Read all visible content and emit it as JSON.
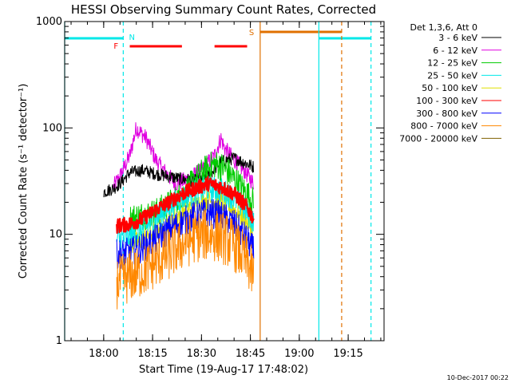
{
  "chart_data": {
    "type": "line",
    "title": "HESSI Observing Summary Count Rates, Corrected",
    "xlabel": "Start Time (19-Aug-17 17:48:02)",
    "ylabel": "Corrected Count Rate (s⁻¹ detector⁻¹)",
    "yscale": "log",
    "ylim": [
      1,
      1000
    ],
    "xlim": [
      "17:48:02",
      "19:26:00"
    ],
    "x_ticks": [
      "18:00",
      "18:15",
      "18:30",
      "18:45",
      "19:00",
      "19:15"
    ],
    "y_ticks": [
      "1",
      "10",
      "100",
      "1000"
    ],
    "legend_title": "Det 1,3,6, Att 0",
    "legend_position": "right",
    "series": [
      {
        "name": "3 - 6 keV",
        "color": "#000000",
        "x": [
          "18:00",
          "18:03",
          "18:05",
          "18:08",
          "18:12",
          "18:16",
          "18:20",
          "18:24",
          "18:28",
          "18:32",
          "18:36",
          "18:40",
          "18:44",
          "18:46"
        ],
        "values": [
          25,
          27,
          30,
          38,
          40,
          37,
          35,
          33,
          32,
          35,
          48,
          52,
          46,
          43
        ]
      },
      {
        "name": "6 - 12 keV",
        "color": "#e000e0",
        "x": [
          "18:03",
          "18:05",
          "18:08",
          "18:10",
          "18:13",
          "18:16",
          "18:19",
          "18:22",
          "18:26",
          "18:30",
          "18:34",
          "18:36",
          "18:37",
          "18:40",
          "18:43",
          "18:46"
        ],
        "values": [
          28,
          35,
          55,
          100,
          80,
          50,
          38,
          30,
          33,
          40,
          55,
          80,
          65,
          50,
          40,
          30
        ]
      },
      {
        "name": "12 - 25 keV",
        "color": "#00cc00",
        "x": [
          "18:08",
          "18:12",
          "18:16",
          "18:20",
          "18:24",
          "18:28",
          "18:31",
          "18:34",
          "18:37",
          "18:40",
          "18:44",
          "18:46"
        ],
        "values": [
          14,
          15,
          16,
          19,
          23,
          32,
          40,
          46,
          42,
          33,
          24,
          20
        ]
      },
      {
        "name": "25 - 50 keV",
        "color": "#00e8e8",
        "x": [
          "18:04",
          "18:08",
          "18:12",
          "18:16",
          "18:20",
          "18:24",
          "18:28",
          "18:32",
          "18:36",
          "18:40",
          "18:44",
          "18:46"
        ],
        "values": [
          9,
          9.5,
          11,
          14,
          18,
          22,
          25,
          27,
          26,
          22,
          16,
          13
        ]
      },
      {
        "name": "50 - 100 keV",
        "color": "#e0e000",
        "x": [
          "18:08",
          "18:12",
          "18:16",
          "18:20",
          "18:24",
          "18:28",
          "18:32",
          "18:36",
          "18:40",
          "18:44",
          "18:46"
        ],
        "values": [
          8,
          9,
          11,
          13,
          16,
          19,
          21,
          20,
          17,
          13,
          11
        ]
      },
      {
        "name": "100 - 300 keV",
        "color": "#ff0000",
        "x": [
          "18:04",
          "18:08",
          "18:12",
          "18:16",
          "18:20",
          "18:24",
          "18:28",
          "18:32",
          "18:36",
          "18:40",
          "18:44",
          "18:46"
        ],
        "values": [
          12,
          12.5,
          14,
          17,
          20,
          24,
          27,
          30,
          28,
          24,
          18,
          14
        ]
      },
      {
        "name": "300 - 800 keV",
        "color": "#0000ff",
        "x": [
          "18:04",
          "18:08",
          "18:12",
          "18:16",
          "18:20",
          "18:24",
          "18:28",
          "18:32",
          "18:36",
          "18:40",
          "18:44",
          "18:46"
        ],
        "values": [
          6.5,
          6.8,
          7.5,
          9,
          11,
          13,
          15,
          16,
          15,
          12.5,
          9,
          7
        ]
      },
      {
        "name": "800 - 7000 keV",
        "color": "#ff8800",
        "x": [
          "18:04",
          "18:08",
          "18:12",
          "18:16",
          "18:20",
          "18:24",
          "18:28",
          "18:32",
          "18:36",
          "18:40",
          "18:44",
          "18:46"
        ],
        "values": [
          3.5,
          4,
          4.5,
          5.5,
          6.5,
          8,
          9.5,
          10,
          9.5,
          8,
          5.5,
          4
        ]
      },
      {
        "name": "7000 - 20000 keV",
        "color": "#806000",
        "x": [],
        "values": []
      }
    ],
    "flags": [
      {
        "label": "N",
        "color": "#00e8e8",
        "spans": [
          [
            "17:48:02",
            "18:06"
          ],
          [
            "19:06",
            "19:22"
          ]
        ]
      },
      {
        "label": "F",
        "color": "#ff0000",
        "spans": [
          [
            "18:08",
            "18:24"
          ],
          [
            "18:34",
            "18:44"
          ]
        ]
      },
      {
        "label": "S",
        "color": "#e07000",
        "spans": [
          [
            "18:48",
            "19:13"
          ]
        ]
      }
    ],
    "vertical_lines": [
      {
        "x": "17:48:02",
        "color": "#00e8e8",
        "style": "solid"
      },
      {
        "x": "18:06",
        "color": "#00e8e8",
        "style": "dashed"
      },
      {
        "x": "18:48",
        "color": "#e07000",
        "style": "solid"
      },
      {
        "x": "19:06",
        "color": "#00e8e8",
        "style": "solid"
      },
      {
        "x": "19:13",
        "color": "#e07000",
        "style": "dashed"
      },
      {
        "x": "19:22",
        "color": "#00e8e8",
        "style": "dashed"
      }
    ],
    "footer": "10-Dec-2017 00:22"
  }
}
